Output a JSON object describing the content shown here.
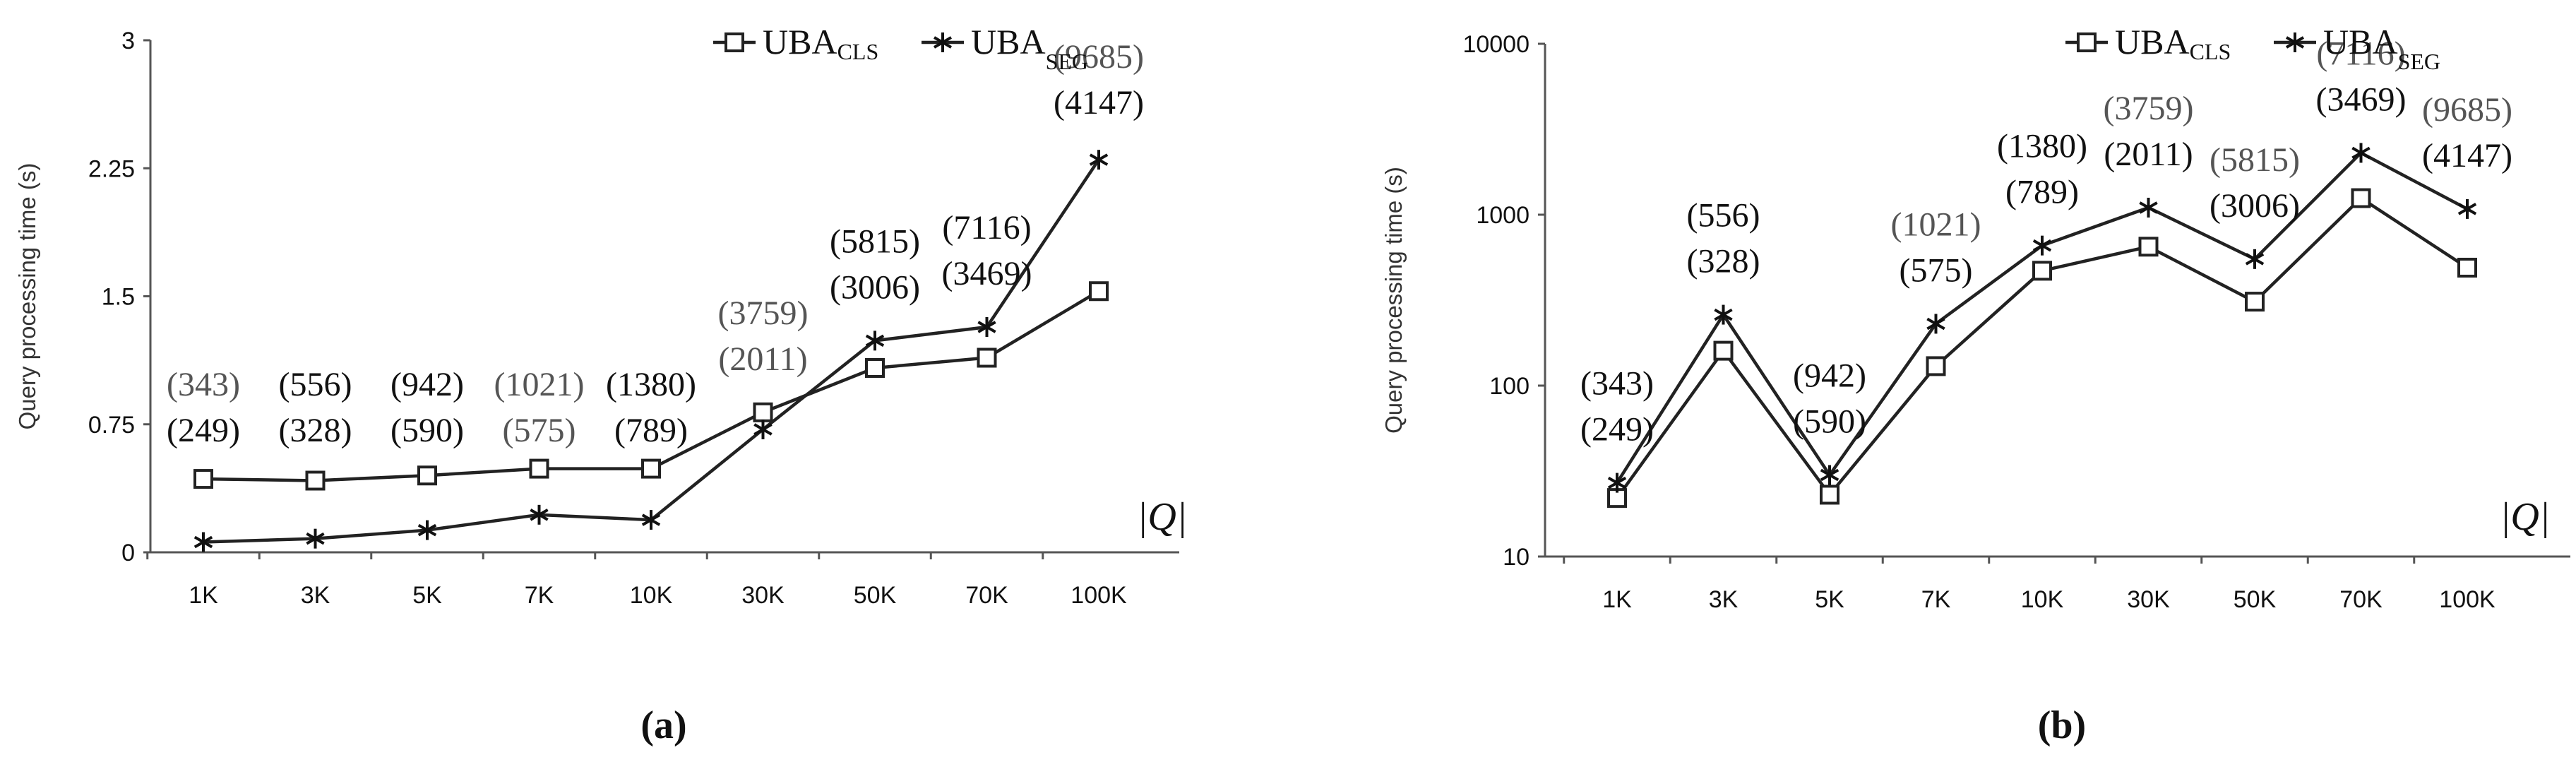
{
  "legend": {
    "cls_main": "UBA",
    "cls_sub": "CLS",
    "seg_main": "UBA",
    "seg_sub": "SEG"
  },
  "x_axis_symbol": "|Q|",
  "chart_data": [
    {
      "type": "line",
      "caption": "(a)",
      "ylabel": "Query processing time (s)",
      "xlabel": "|Q|",
      "y_scale": "linear",
      "ylim": [
        0,
        3
      ],
      "yticks": [
        "0",
        "0.75",
        "1.5",
        "2.25",
        "3"
      ],
      "ytick_values": [
        0,
        0.75,
        1.5,
        2.25,
        3
      ],
      "categories": [
        "1K",
        "3K",
        "5K",
        "7K",
        "10K",
        "30K",
        "50K",
        "70K",
        "100K"
      ],
      "series": [
        {
          "name": "UBA_CLS",
          "marker": "square",
          "values": [
            0.43,
            0.42,
            0.45,
            0.49,
            0.49,
            0.82,
            1.08,
            1.14,
            1.53
          ]
        },
        {
          "name": "UBA_SEG",
          "marker": "asterisk",
          "values": [
            0.06,
            0.08,
            0.13,
            0.22,
            0.19,
            0.72,
            1.24,
            1.32,
            2.3
          ]
        }
      ],
      "annotations": {
        "upper": [
          "(343)",
          "(556)",
          "(942)",
          "(1021)",
          "(1380)",
          "(3759)",
          "(5815)",
          "(7116)",
          "(9685)"
        ],
        "lower": [
          "(249)",
          "(328)",
          "(590)",
          "(575)",
          "(789)",
          "(2011)",
          "(3006)",
          "(3469)",
          "(4147)"
        ]
      },
      "legend_position": "top-right"
    },
    {
      "type": "line",
      "caption": "(b)",
      "ylabel": "Query processing time (s)",
      "xlabel": "|Q|",
      "y_scale": "log",
      "ylim": [
        10,
        10000
      ],
      "yticks": [
        "10",
        "100",
        "1000",
        "10000"
      ],
      "ytick_values": [
        10,
        100,
        1000,
        10000
      ],
      "categories": [
        "1K",
        "3K",
        "5K",
        "7K",
        "10K",
        "30K",
        "50K",
        "70K",
        "100K"
      ],
      "series": [
        {
          "name": "UBA_CLS",
          "marker": "square",
          "values": [
            22,
            160,
            23,
            130,
            470,
            650,
            310,
            1250,
            490
          ]
        },
        {
          "name": "UBA_SEG",
          "marker": "asterisk",
          "values": [
            27,
            260,
            30,
            230,
            660,
            1100,
            550,
            2300,
            1080
          ]
        }
      ],
      "annotations": {
        "upper": [
          "(343)",
          "(556)",
          "(942)",
          "(1021)",
          "(1380)",
          "(3759)",
          "(5815)",
          "(7116)",
          "(9685)"
        ],
        "lower": [
          "(249)",
          "(328)",
          "(590)",
          "(575)",
          "(789)",
          "(2011)",
          "(3006)",
          "(3469)",
          "(4147)"
        ]
      },
      "legend_position": "top-right"
    }
  ]
}
